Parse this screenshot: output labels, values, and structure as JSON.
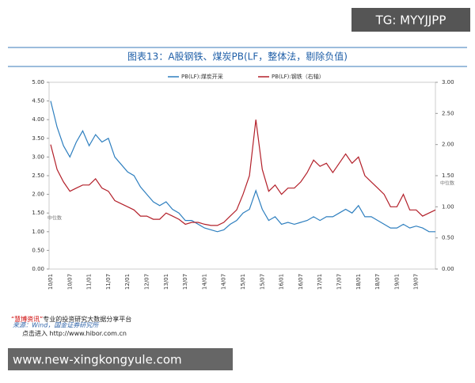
{
  "watermark": "TG: MYYJJPP",
  "chart_data": {
    "type": "line",
    "title": "图表13：A股钢铁、煤炭PB(LF，整体法，剔除负值)",
    "categories": [
      "10/01",
      null,
      null,
      "10/07",
      null,
      null,
      "11/01",
      null,
      null,
      "11/07",
      null,
      null,
      "12/01",
      null,
      null,
      "12/07",
      null,
      null,
      "13/01",
      null,
      null,
      "13/07",
      null,
      null,
      "14/01",
      null,
      null,
      "14/07",
      null,
      null,
      "15/01",
      null,
      null,
      "15/07",
      null,
      null,
      "16/01",
      null,
      null,
      "16/07",
      null,
      null,
      "17/01",
      null,
      null,
      "17/07",
      null,
      null,
      "18/01",
      null,
      null,
      "18/07",
      null,
      null,
      "19/01",
      null,
      null,
      "19/07",
      null,
      null,
      null
    ],
    "series": [
      {
        "name": "PB(LF):煤炭开采",
        "color": "#2e7fbf",
        "axis": "y",
        "values": [
          4.5,
          3.8,
          3.3,
          3.0,
          3.4,
          3.7,
          3.3,
          3.6,
          3.4,
          3.5,
          3.0,
          2.8,
          2.6,
          2.5,
          2.2,
          2.0,
          1.8,
          1.7,
          1.8,
          1.6,
          1.5,
          1.3,
          1.3,
          1.2,
          1.1,
          1.05,
          1.0,
          1.05,
          1.2,
          1.3,
          1.5,
          1.6,
          2.1,
          1.6,
          1.3,
          1.4,
          1.2,
          1.25,
          1.2,
          1.25,
          1.3,
          1.4,
          1.3,
          1.4,
          1.4,
          1.5,
          1.6,
          1.5,
          1.7,
          1.4,
          1.4,
          1.3,
          1.2,
          1.1,
          1.1,
          1.2,
          1.1,
          1.15,
          1.1,
          1.0,
          1.0
        ]
      },
      {
        "name": "PB(LF):钢铁（右轴）",
        "color": "#b3202a",
        "axis": "y2",
        "values": [
          2.0,
          1.6,
          1.4,
          1.25,
          1.3,
          1.35,
          1.35,
          1.45,
          1.3,
          1.25,
          1.1,
          1.05,
          1.0,
          0.95,
          0.85,
          0.85,
          0.8,
          0.8,
          0.9,
          0.85,
          0.8,
          0.72,
          0.75,
          0.75,
          0.72,
          0.7,
          0.7,
          0.75,
          0.85,
          0.95,
          1.2,
          1.5,
          2.4,
          1.6,
          1.25,
          1.35,
          1.2,
          1.3,
          1.3,
          1.4,
          1.55,
          1.75,
          1.65,
          1.7,
          1.55,
          1.7,
          1.85,
          1.7,
          1.8,
          1.5,
          1.4,
          1.3,
          1.2,
          1.0,
          1.0,
          1.2,
          0.95,
          0.95,
          0.85,
          0.9,
          0.95
        ]
      }
    ],
    "ylim": [
      0,
      5
    ],
    "yticks": [
      {
        "value": 0,
        "label": "0.00"
      },
      {
        "value": 0.5,
        "label": "0.50"
      },
      {
        "value": 1,
        "label": "1.00"
      },
      {
        "value": 1.5,
        "label": "1.50"
      },
      {
        "value": 2,
        "label": "2.00"
      },
      {
        "value": 2.5,
        "label": "2.50"
      },
      {
        "value": 3,
        "label": "3.00"
      },
      {
        "value": 3.5,
        "label": "3.50"
      },
      {
        "value": 4,
        "label": "4.00"
      },
      {
        "value": 4.5,
        "label": "4.50"
      },
      {
        "value": 5,
        "label": "5.00"
      }
    ],
    "y2lim": [
      0,
      3
    ],
    "y2ticks": [
      {
        "value": 0,
        "label": "0.00"
      },
      {
        "value": 0.5,
        "label": "0.50"
      },
      {
        "value": 1,
        "label": "1.00"
      },
      {
        "value": 1.5,
        "label": "1.50"
      },
      {
        "value": 2,
        "label": "2.00"
      },
      {
        "value": 2.5,
        "label": "2.50"
      },
      {
        "value": 3,
        "label": "3.00"
      }
    ],
    "annotations": [
      "中位数",
      "中位数"
    ]
  },
  "footer": {
    "brand": "“慧博资讯”",
    "slogan": "专业的投资研究大数据分享平台",
    "source": "来源：Wind，国金证券研究所",
    "link_prefix": "点击进入",
    "link": "http://www.hibor.com.cn"
  },
  "banner": "www.new-xingkongyule.com"
}
